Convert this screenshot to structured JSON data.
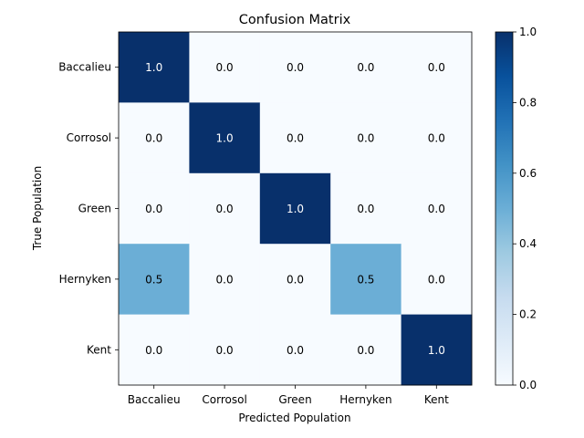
{
  "chart_data": {
    "type": "heatmap",
    "title": "Confusion Matrix",
    "xlabel": "Predicted Population",
    "ylabel": "True Population",
    "x_categories": [
      "Baccalieu",
      "Corrosol",
      "Green",
      "Hernyken",
      "Kent"
    ],
    "y_categories": [
      "Baccalieu",
      "Corrosol",
      "Green",
      "Hernyken",
      "Kent"
    ],
    "values": [
      [
        1.0,
        0.0,
        0.0,
        0.0,
        0.0
      ],
      [
        0.0,
        1.0,
        0.0,
        0.0,
        0.0
      ],
      [
        0.0,
        0.0,
        1.0,
        0.0,
        0.0
      ],
      [
        0.5,
        0.0,
        0.0,
        0.5,
        0.0
      ],
      [
        0.0,
        0.0,
        0.0,
        0.0,
        1.0
      ]
    ],
    "cell_labels": [
      [
        "1.0",
        "0.0",
        "0.0",
        "0.0",
        "0.0"
      ],
      [
        "0.0",
        "1.0",
        "0.0",
        "0.0",
        "0.0"
      ],
      [
        "0.0",
        "0.0",
        "1.0",
        "0.0",
        "0.0"
      ],
      [
        "0.5",
        "0.0",
        "0.0",
        "0.5",
        "0.0"
      ],
      [
        "0.0",
        "0.0",
        "0.0",
        "0.0",
        "1.0"
      ]
    ],
    "colorbar": {
      "range": [
        0.0,
        1.0
      ],
      "ticks": [
        "0.0",
        "0.2",
        "0.4",
        "0.6",
        "0.8",
        "1.0"
      ],
      "colormap": "Blues"
    },
    "colors": {
      "low": "#f7fbff",
      "high": "#08306b",
      "text_on_dark": "#ffffff",
      "text_on_light": "#000000"
    }
  }
}
